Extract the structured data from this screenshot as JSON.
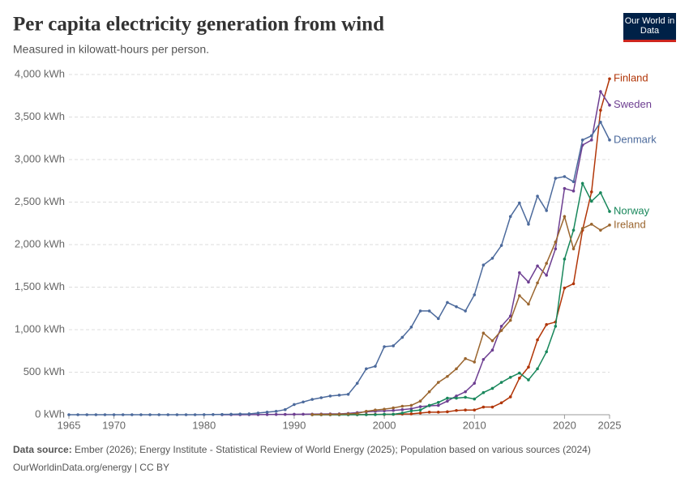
{
  "chart_data": {
    "type": "line",
    "title": "Per capita electricity generation from wind",
    "subtitle": "Measured in kilowatt-hours per person.",
    "logo": "Our World in Data",
    "source_label": "Data source:",
    "source": "Ember (2026); Energy Institute - Statistical Review of World Energy (2025); Population based on various sources (2024)",
    "footer": "OurWorldinData.org/energy | CC BY",
    "xlim": [
      1965,
      2025
    ],
    "xticks": [
      1965,
      1970,
      1980,
      1990,
      2000,
      2010,
      2020,
      2025
    ],
    "ylim": [
      0,
      4000
    ],
    "yticks": [
      {
        "value": 0,
        "label": "0 kWh"
      },
      {
        "value": 500,
        "label": "500 kWh"
      },
      {
        "value": 1000,
        "label": "1,000 kWh"
      },
      {
        "value": 1500,
        "label": "1,500 kWh"
      },
      {
        "value": 2000,
        "label": "2,000 kWh"
      },
      {
        "value": 2500,
        "label": "2,500 kWh"
      },
      {
        "value": 3000,
        "label": "3,000 kWh"
      },
      {
        "value": 3500,
        "label": "3,500 kWh"
      },
      {
        "value": 4000,
        "label": "4,000 kWh"
      }
    ],
    "grid": true,
    "x": [
      1965,
      1966,
      1967,
      1968,
      1969,
      1970,
      1971,
      1972,
      1973,
      1974,
      1975,
      1976,
      1977,
      1978,
      1979,
      1980,
      1981,
      1982,
      1983,
      1984,
      1985,
      1986,
      1987,
      1988,
      1989,
      1990,
      1991,
      1992,
      1993,
      1994,
      1995,
      1996,
      1997,
      1998,
      1999,
      2000,
      2001,
      2002,
      2003,
      2004,
      2005,
      2006,
      2007,
      2008,
      2009,
      2010,
      2011,
      2012,
      2013,
      2014,
      2015,
      2016,
      2017,
      2018,
      2019,
      2020,
      2021,
      2022,
      2023,
      2024,
      2025
    ],
    "series": [
      {
        "name": "Finland",
        "color": "#b13507",
        "values": [
          null,
          null,
          null,
          null,
          null,
          null,
          null,
          null,
          null,
          null,
          null,
          null,
          null,
          null,
          null,
          null,
          null,
          null,
          null,
          null,
          null,
          null,
          null,
          null,
          null,
          null,
          null,
          0,
          0,
          0,
          0,
          1,
          1,
          2,
          3,
          4,
          5,
          8,
          10,
          20,
          30,
          30,
          35,
          50,
          55,
          55,
          90,
          90,
          140,
          210,
          430,
          560,
          880,
          1060,
          1090,
          1490,
          1540,
          2170,
          2620,
          3580,
          3950
        ]
      },
      {
        "name": "Sweden",
        "color": "#6d3e91",
        "values": [
          null,
          null,
          null,
          null,
          null,
          null,
          null,
          null,
          null,
          null,
          null,
          null,
          null,
          null,
          null,
          null,
          null,
          0,
          0,
          0,
          1,
          1,
          2,
          3,
          4,
          5,
          6,
          7,
          8,
          9,
          10,
          15,
          25,
          35,
          40,
          45,
          50,
          60,
          70,
          95,
          105,
          110,
          160,
          220,
          270,
          370,
          650,
          760,
          1040,
          1160,
          1670,
          1560,
          1750,
          1640,
          1950,
          2660,
          2630,
          3170,
          3230,
          3800,
          3640
        ]
      },
      {
        "name": "Denmark",
        "color": "#4c6a9c",
        "values": [
          0,
          0,
          0,
          0,
          0,
          0,
          0,
          0,
          0,
          0,
          0,
          0,
          0,
          0,
          0,
          1,
          2,
          3,
          5,
          8,
          10,
          20,
          30,
          40,
          60,
          120,
          150,
          180,
          200,
          220,
          230,
          240,
          370,
          540,
          570,
          800,
          810,
          910,
          1030,
          1220,
          1220,
          1130,
          1320,
          1270,
          1220,
          1410,
          1760,
          1840,
          1990,
          2330,
          2490,
          2240,
          2570,
          2400,
          2780,
          2800,
          2740,
          3230,
          3280,
          3440,
          3230
        ]
      },
      {
        "name": "Norway",
        "color": "#18875b",
        "values": [
          null,
          null,
          null,
          null,
          null,
          null,
          null,
          null,
          null,
          null,
          null,
          null,
          null,
          null,
          null,
          null,
          null,
          null,
          null,
          null,
          null,
          null,
          null,
          null,
          null,
          null,
          null,
          0,
          0,
          0,
          0,
          0,
          0,
          0,
          1,
          5,
          5,
          20,
          45,
          55,
          110,
          145,
          195,
          195,
          205,
          185,
          260,
          310,
          380,
          440,
          490,
          410,
          540,
          740,
          1040,
          1830,
          2170,
          2720,
          2510,
          2610,
          2390
        ]
      },
      {
        "name": "Ireland",
        "color": "#9a652e",
        "values": [
          null,
          null,
          null,
          null,
          null,
          null,
          null,
          null,
          null,
          null,
          null,
          null,
          null,
          null,
          null,
          null,
          null,
          null,
          null,
          null,
          null,
          null,
          null,
          null,
          null,
          null,
          null,
          2,
          3,
          4,
          6,
          9,
          15,
          40,
          55,
          65,
          80,
          100,
          110,
          160,
          270,
          380,
          450,
          540,
          660,
          620,
          960,
          870,
          990,
          1110,
          1400,
          1300,
          1550,
          1780,
          2030,
          2330,
          1950,
          2190,
          2240,
          2170,
          2230
        ]
      }
    ]
  }
}
